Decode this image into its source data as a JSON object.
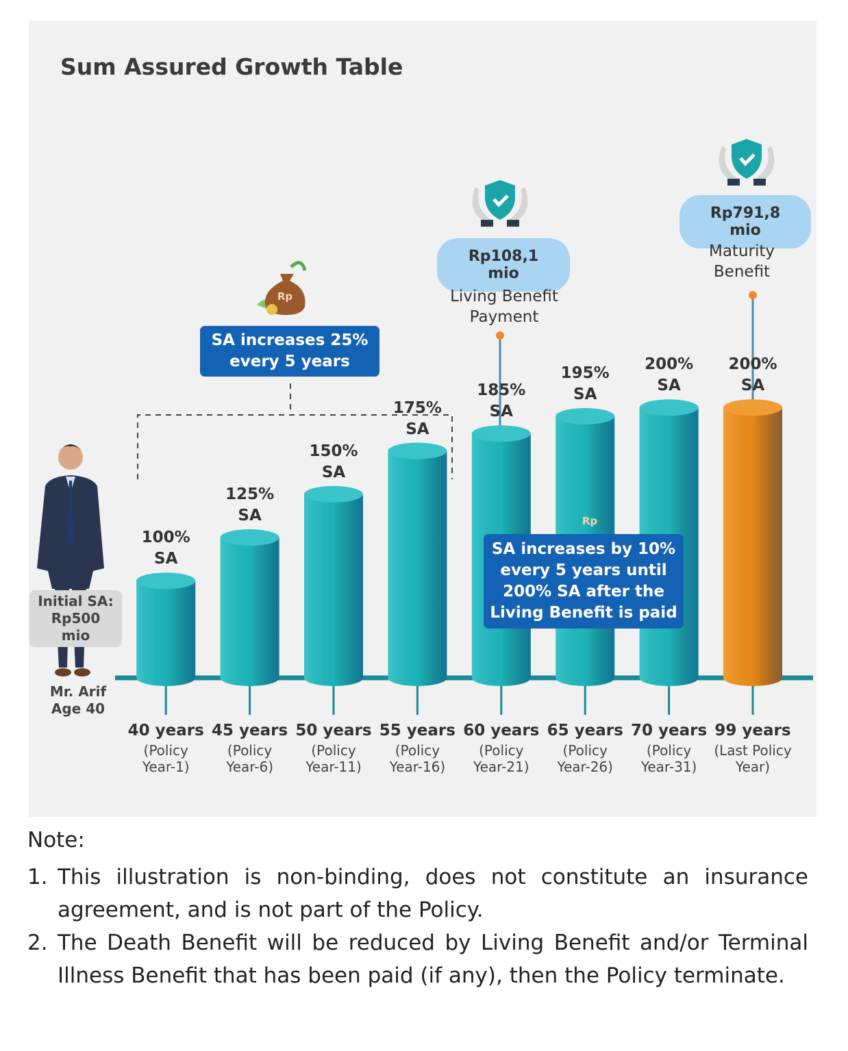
{
  "title": "Sum Assured Growth Table",
  "chart_data": {
    "type": "bar",
    "categories": [
      "40 years",
      "45 years",
      "50 years",
      "55 years",
      "60 years",
      "65 years",
      "70 years",
      "99 years"
    ],
    "category_notes": [
      "(Policy\nYear-1)",
      "(Policy\nYear-6)",
      "(Policy\nYear-11)",
      "(Policy\nYear-16)",
      "(Policy\nYear-21)",
      "(Policy\nYear-26)",
      "(Policy\nYear-31)",
      "(Last Policy\nYear)"
    ],
    "values": [
      100,
      125,
      150,
      175,
      185,
      195,
      200,
      200
    ],
    "value_labels": [
      "100%\nSA",
      "125%\nSA",
      "150%\nSA",
      "175%\nSA",
      "185%\nSA",
      "195%\nSA",
      "200%\nSA",
      "200%\nSA"
    ],
    "colors": [
      "#1fbcc2",
      "#1fbcc2",
      "#1fbcc2",
      "#1fbcc2",
      "#1fbcc2",
      "#1fbcc2",
      "#1fbcc2",
      "#f0901a"
    ],
    "ylim": [
      44,
      210
    ]
  },
  "person": {
    "initial_sa": "Initial SA:\nRp500 mio",
    "name": "Mr. Arif\nAge 40"
  },
  "bag_label": "Rp",
  "callouts": [
    {
      "text": "SA increases 25%\nevery 5 years"
    },
    {
      "text": "SA increases by 10%\nevery 5 years until\n200% SA after the\nLiving Benefit is paid"
    }
  ],
  "benefits": [
    {
      "amount": "Rp108,1 mio",
      "label": "Living Benefit\nPayment"
    },
    {
      "amount": "Rp791,8 mio",
      "label": "Maturity\nBenefit"
    }
  ],
  "notes": {
    "heading": "Note:",
    "items": [
      {
        "number": "1.",
        "text": "This illustration is non-binding, does not constitute an insurance agreement, and is not part of the Policy."
      },
      {
        "number": "2.",
        "text": "The Death Benefit will be reduced by Living Benefit and/or Terminal Illness Benefit that has been paid (if any), then the Policy terminate."
      }
    ]
  }
}
